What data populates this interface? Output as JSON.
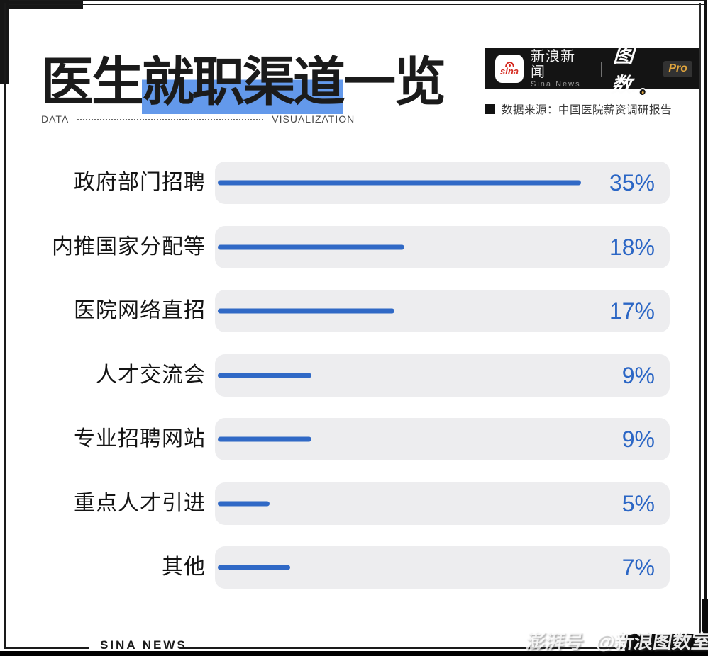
{
  "header": {
    "title_pre": "医生",
    "title_highlight": "就职渠道",
    "title_post": "一览",
    "subtitle_left": "DATA",
    "subtitle_right": "VISUALIZATION",
    "brand": {
      "sina_icon_text": "sina",
      "name_cn": "新浪新闻",
      "name_en": "Sina News",
      "separator": "|",
      "product_logo": "图数.",
      "product_badge": "Pro"
    },
    "source_text": "数据来源：中国医院薪资调研报告"
  },
  "chart_data": {
    "type": "bar",
    "orientation": "horizontal",
    "title": "医生就职渠道一览",
    "categories": [
      "政府部门招聘",
      "内推国家分配等",
      "医院网络直招",
      "人才交流会",
      "专业招聘网站",
      "重点人才引进",
      "其他"
    ],
    "values": [
      35,
      18,
      17,
      9,
      9,
      5,
      7
    ],
    "unit": "%",
    "value_labels": [
      "35%",
      "18%",
      "17%",
      "9%",
      "9%",
      "5%",
      "7%"
    ],
    "xlim": [
      0,
      43.75
    ],
    "grid": false,
    "legend": false,
    "bar_color": "#3069c6",
    "track_color": "#ededef",
    "value_color": "#2b66c5",
    "highlight_color": "#6399eb"
  },
  "footer": {
    "brand_text": "SINA NEWS",
    "watermark_prefix": "澎湃号",
    "watermark_handle": "@新浪图数室"
  }
}
